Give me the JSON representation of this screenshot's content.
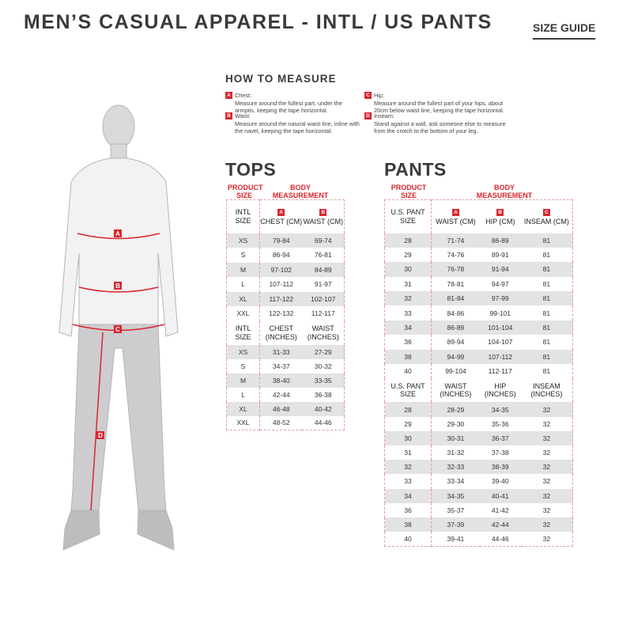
{
  "title": "MEN’S CASUAL APPAREL - INTL / US PANTS",
  "size_guide": "SIZE GUIDE",
  "how_to_measure": {
    "heading": "HOW TO MEASURE",
    "items": [
      {
        "letter": "A",
        "label": "Chest:",
        "text": "Measure around the fullest part, under the armpits, keeping the tape horizontal."
      },
      {
        "letter": "B",
        "label": "Waist:",
        "text": "Measure around the natural waist line, inline with the navel, keeping the tape horizontal."
      },
      {
        "letter": "C",
        "label": "Hip:",
        "text": "Measure around the fullest part of your hips, about 20cm below waist line, keeping the tape horizontal."
      },
      {
        "letter": "D",
        "label": "Inseam:",
        "text": "Stand against a wall, ask someone else to measure from the crotch to the bottom of your leg."
      }
    ]
  },
  "figure": {
    "labels": [
      "A",
      "B",
      "C",
      "D"
    ],
    "accent": "#d8262e"
  },
  "tops": {
    "heading": "TOPS",
    "product_size": "PRODUCT SIZE",
    "body_measurement": "BODY MEASUREMENT",
    "cm": {
      "size_header": "INTL SIZE",
      "letters": [
        "A",
        "B"
      ],
      "columns": [
        "CHEST (CM)",
        "WAIST (CM)"
      ],
      "rows": [
        [
          "XS",
          "79-84",
          "69-74"
        ],
        [
          "S",
          "86-94",
          "76-81"
        ],
        [
          "M",
          "97-102",
          "84-89"
        ],
        [
          "L",
          "107-112",
          "91-97"
        ],
        [
          "XL",
          "117-122",
          "102-107"
        ],
        [
          "XXL",
          "122-132",
          "112-117"
        ]
      ]
    },
    "inches": {
      "size_header": "INTL SIZE",
      "columns": [
        "CHEST (INCHES)",
        "WAIST (INCHES)"
      ],
      "rows": [
        [
          "XS",
          "31-33",
          "27-29"
        ],
        [
          "S",
          "34-37",
          "30-32"
        ],
        [
          "M",
          "38-40",
          "33-35"
        ],
        [
          "L",
          "42-44",
          "36-38"
        ],
        [
          "XL",
          "46-48",
          "40-42"
        ],
        [
          "XXL",
          "48-52",
          "44-46"
        ]
      ]
    }
  },
  "pants": {
    "heading": "PANTS",
    "product_size": "PRODUCT SIZE",
    "body_measurement": "BODY MEASUREMENT",
    "cm": {
      "size_header": "U.S. PANT SIZE",
      "letters": [
        "A",
        "B",
        "C"
      ],
      "columns": [
        "WAIST (CM)",
        "HIP (CM)",
        "INSEAM (CM)"
      ],
      "rows": [
        [
          "28",
          "71-74",
          "86-89",
          "81"
        ],
        [
          "29",
          "74-76",
          "89-91",
          "81"
        ],
        [
          "30",
          "76-78",
          "91-94",
          "81"
        ],
        [
          "31",
          "78-81",
          "94-97",
          "81"
        ],
        [
          "32",
          "81-84",
          "97-99",
          "81"
        ],
        [
          "33",
          "84-86",
          "99-101",
          "81"
        ],
        [
          "34",
          "86-89",
          "101-104",
          "81"
        ],
        [
          "36",
          "89-94",
          "104-107",
          "81"
        ],
        [
          "38",
          "94-99",
          "107-112",
          "81"
        ],
        [
          "40",
          "99-104",
          "112-117",
          "81"
        ]
      ]
    },
    "inches": {
      "size_header": "U.S. PANT SIZE",
      "columns": [
        "WAIST (INCHES)",
        "HIP (INCHES)",
        "INSEAM (INCHES)"
      ],
      "rows": [
        [
          "28",
          "28-29",
          "34-35",
          "32"
        ],
        [
          "29",
          "29-30",
          "35-36",
          "32"
        ],
        [
          "30",
          "30-31",
          "36-37",
          "32"
        ],
        [
          "31",
          "31-32",
          "37-38",
          "32"
        ],
        [
          "32",
          "32-33",
          "38-39",
          "32"
        ],
        [
          "33",
          "33-34",
          "39-40",
          "32"
        ],
        [
          "34",
          "34-35",
          "40-41",
          "32"
        ],
        [
          "36",
          "35-37",
          "41-42",
          "32"
        ],
        [
          "38",
          "37-39",
          "42-44",
          "32"
        ],
        [
          "40",
          "39-41",
          "44-46",
          "32"
        ]
      ]
    }
  }
}
